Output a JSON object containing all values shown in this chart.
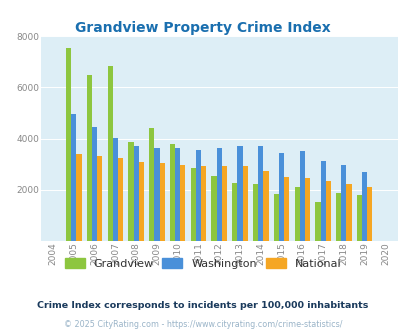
{
  "title": "Grandview Property Crime Index",
  "title_color": "#1a6faf",
  "years": [
    "2004",
    "2005",
    "2006",
    "2007",
    "2008",
    "2009",
    "2010",
    "2011",
    "2012",
    "2013",
    "2014",
    "2015",
    "2016",
    "2017",
    "2018",
    "2019",
    "2020"
  ],
  "grandview": [
    0,
    7550,
    6490,
    6820,
    3850,
    4430,
    3800,
    2850,
    2530,
    2250,
    2230,
    1840,
    2120,
    1530,
    1870,
    1790,
    0
  ],
  "washington": [
    0,
    4950,
    4470,
    4020,
    3720,
    3640,
    3620,
    3570,
    3650,
    3720,
    3720,
    3420,
    3510,
    3130,
    2980,
    2700,
    0
  ],
  "national": [
    0,
    3400,
    3320,
    3240,
    3100,
    3030,
    2960,
    2920,
    2930,
    2930,
    2720,
    2490,
    2460,
    2340,
    2210,
    2110,
    0
  ],
  "grandview_color": "#8dc63f",
  "washington_color": "#4a90d9",
  "national_color": "#f5a623",
  "bg_color": "#ddeef6",
  "ylim": [
    0,
    8000
  ],
  "yticks": [
    0,
    2000,
    4000,
    6000,
    8000
  ],
  "subtitle": "Crime Index corresponds to incidents per 100,000 inhabitants",
  "subtitle_color": "#1a3a5c",
  "footer": "© 2025 CityRating.com - https://www.cityrating.com/crime-statistics/",
  "footer_color": "#9ab4c8",
  "legend_labels": [
    "Grandview",
    "Washington",
    "National"
  ],
  "bar_width": 0.25
}
